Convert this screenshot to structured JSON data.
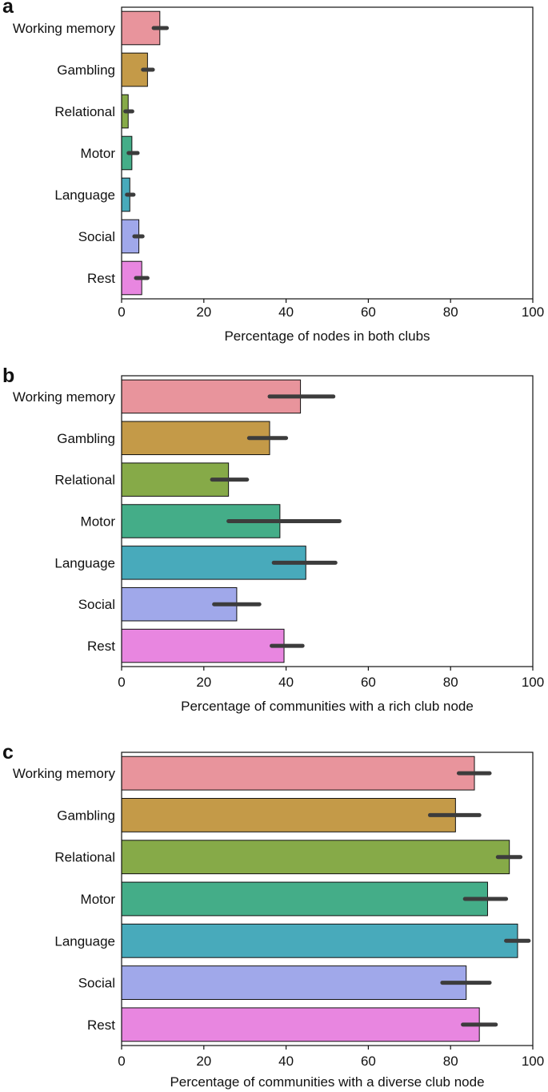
{
  "chart_data": [
    {
      "type": "bar",
      "orientation": "horizontal",
      "panel": "a",
      "categories": [
        "Working memory",
        "Gambling",
        "Relational",
        "Motor",
        "Language",
        "Social",
        "Rest"
      ],
      "values": [
        9.3,
        6.3,
        1.6,
        2.5,
        2.0,
        4.2,
        4.9
      ],
      "error_low": [
        7.8,
        5.2,
        0.9,
        1.7,
        1.3,
        3.1,
        3.5
      ],
      "error_high": [
        11.0,
        7.6,
        2.6,
        3.9,
        2.9,
        5.1,
        6.3
      ],
      "colors": [
        "#e8949c",
        "#c49a48",
        "#86aa48",
        "#44ad88",
        "#48aabb",
        "#a0a8ea",
        "#e886e0"
      ],
      "title": "",
      "xlabel": "Percentage of nodes in both clubs",
      "ylabel": "",
      "xlim": [
        0,
        100
      ],
      "xticks": [
        0,
        20,
        40,
        60,
        80,
        100
      ]
    },
    {
      "type": "bar",
      "orientation": "horizontal",
      "panel": "b",
      "categories": [
        "Working memory",
        "Gambling",
        "Relational",
        "Motor",
        "Language",
        "Social",
        "Rest"
      ],
      "values": [
        43.5,
        36.0,
        26.0,
        38.5,
        44.8,
        28.0,
        39.5
      ],
      "error_low": [
        36.0,
        31.0,
        22.0,
        26.0,
        37.0,
        22.5,
        36.5
      ],
      "error_high": [
        51.5,
        40.0,
        30.5,
        53.0,
        52.0,
        33.5,
        44.0
      ],
      "colors": [
        "#e8949c",
        "#c49a48",
        "#86aa48",
        "#44ad88",
        "#48aabb",
        "#a0a8ea",
        "#e886e0"
      ],
      "title": "",
      "xlabel": "Percentage of communities with a rich club node",
      "ylabel": "",
      "xlim": [
        0,
        100
      ],
      "xticks": [
        0,
        20,
        40,
        60,
        80,
        100
      ]
    },
    {
      "type": "bar",
      "orientation": "horizontal",
      "panel": "c",
      "categories": [
        "Working memory",
        "Gambling",
        "Relational",
        "Motor",
        "Language",
        "Social",
        "Rest"
      ],
      "values": [
        85.8,
        81.2,
        94.3,
        89.0,
        96.3,
        83.8,
        87.0
      ],
      "error_low": [
        82.0,
        75.0,
        91.5,
        83.5,
        93.5,
        78.0,
        83.0
      ],
      "error_high": [
        89.5,
        87.0,
        97.0,
        93.5,
        99.0,
        89.5,
        91.0
      ],
      "colors": [
        "#e8949c",
        "#c49a48",
        "#86aa48",
        "#44ad88",
        "#48aabb",
        "#a0a8ea",
        "#e886e0"
      ],
      "title": "",
      "xlabel": "Percentage of communities with a diverse club node",
      "ylabel": "",
      "xlim": [
        0,
        100
      ],
      "xticks": [
        0,
        20,
        40,
        60,
        80,
        100
      ]
    }
  ]
}
